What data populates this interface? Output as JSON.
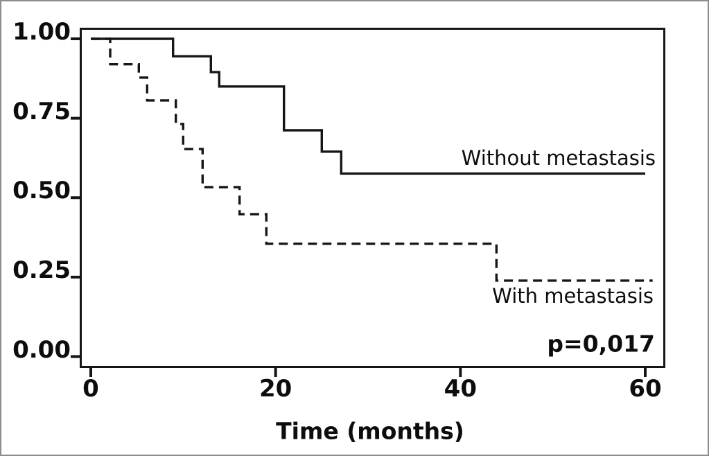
{
  "figure": {
    "background_color": "#ffffff",
    "outer_border_color": "#8c8c8c",
    "line_color": "#161616"
  },
  "chart_data": {
    "type": "line",
    "subtype": "kaplan-meier-step-survival",
    "title": "",
    "xlabel": "Time (months)",
    "ylabel": "",
    "xlim": [
      0,
      60
    ],
    "ylim": [
      0.0,
      1.0
    ],
    "grid": false,
    "legend_position": "inline-annotations",
    "xticks": [
      {
        "value": 0,
        "label": "0"
      },
      {
        "value": 20,
        "label": "20"
      },
      {
        "value": 40,
        "label": "40"
      },
      {
        "value": 60,
        "label": "60"
      }
    ],
    "yticks": [
      {
        "value": 1.0,
        "label": "1.00"
      },
      {
        "value": 0.75,
        "label": "0.75"
      },
      {
        "value": 0.5,
        "label": "0.50"
      },
      {
        "value": 0.25,
        "label": "0.25"
      },
      {
        "value": 0.0,
        "label": "0.00"
      }
    ],
    "series": [
      {
        "name": "Without metastasis",
        "line_style": "solid",
        "color": "#161616",
        "start": {
          "t": 0,
          "s": 1.0
        },
        "end_t": 60.0,
        "events": [
          {
            "t": 8.9,
            "s": 0.945
          },
          {
            "t": 13.0,
            "s": 0.895
          },
          {
            "t": 13.9,
            "s": 0.85
          },
          {
            "t": 20.9,
            "s": 0.712
          },
          {
            "t": 25.0,
            "s": 0.645
          },
          {
            "t": 27.1,
            "s": 0.576
          }
        ]
      },
      {
        "name": "With metastasis",
        "line_style": "dashed",
        "color": "#161616",
        "start": {
          "t": 0,
          "s": 1.0
        },
        "end_t": 60.8,
        "events": [
          {
            "t": 2.1,
            "s": 0.92
          },
          {
            "t": 5.2,
            "s": 0.878
          },
          {
            "t": 6.1,
            "s": 0.806
          },
          {
            "t": 9.2,
            "s": 0.732
          },
          {
            "t": 10.0,
            "s": 0.653
          },
          {
            "t": 12.1,
            "s": 0.533
          },
          {
            "t": 16.1,
            "s": 0.448
          },
          {
            "t": 19.0,
            "s": 0.355
          },
          {
            "t": 43.9,
            "s": 0.239
          }
        ]
      }
    ],
    "annotations": [
      {
        "text": "Without metastasis",
        "placement": "right side, above solid curve tail"
      },
      {
        "text": "With metastasis",
        "placement": "right side, below dashed curve tail"
      },
      {
        "text": "p=0,017",
        "placement": "bottom right inside plot frame"
      }
    ]
  }
}
